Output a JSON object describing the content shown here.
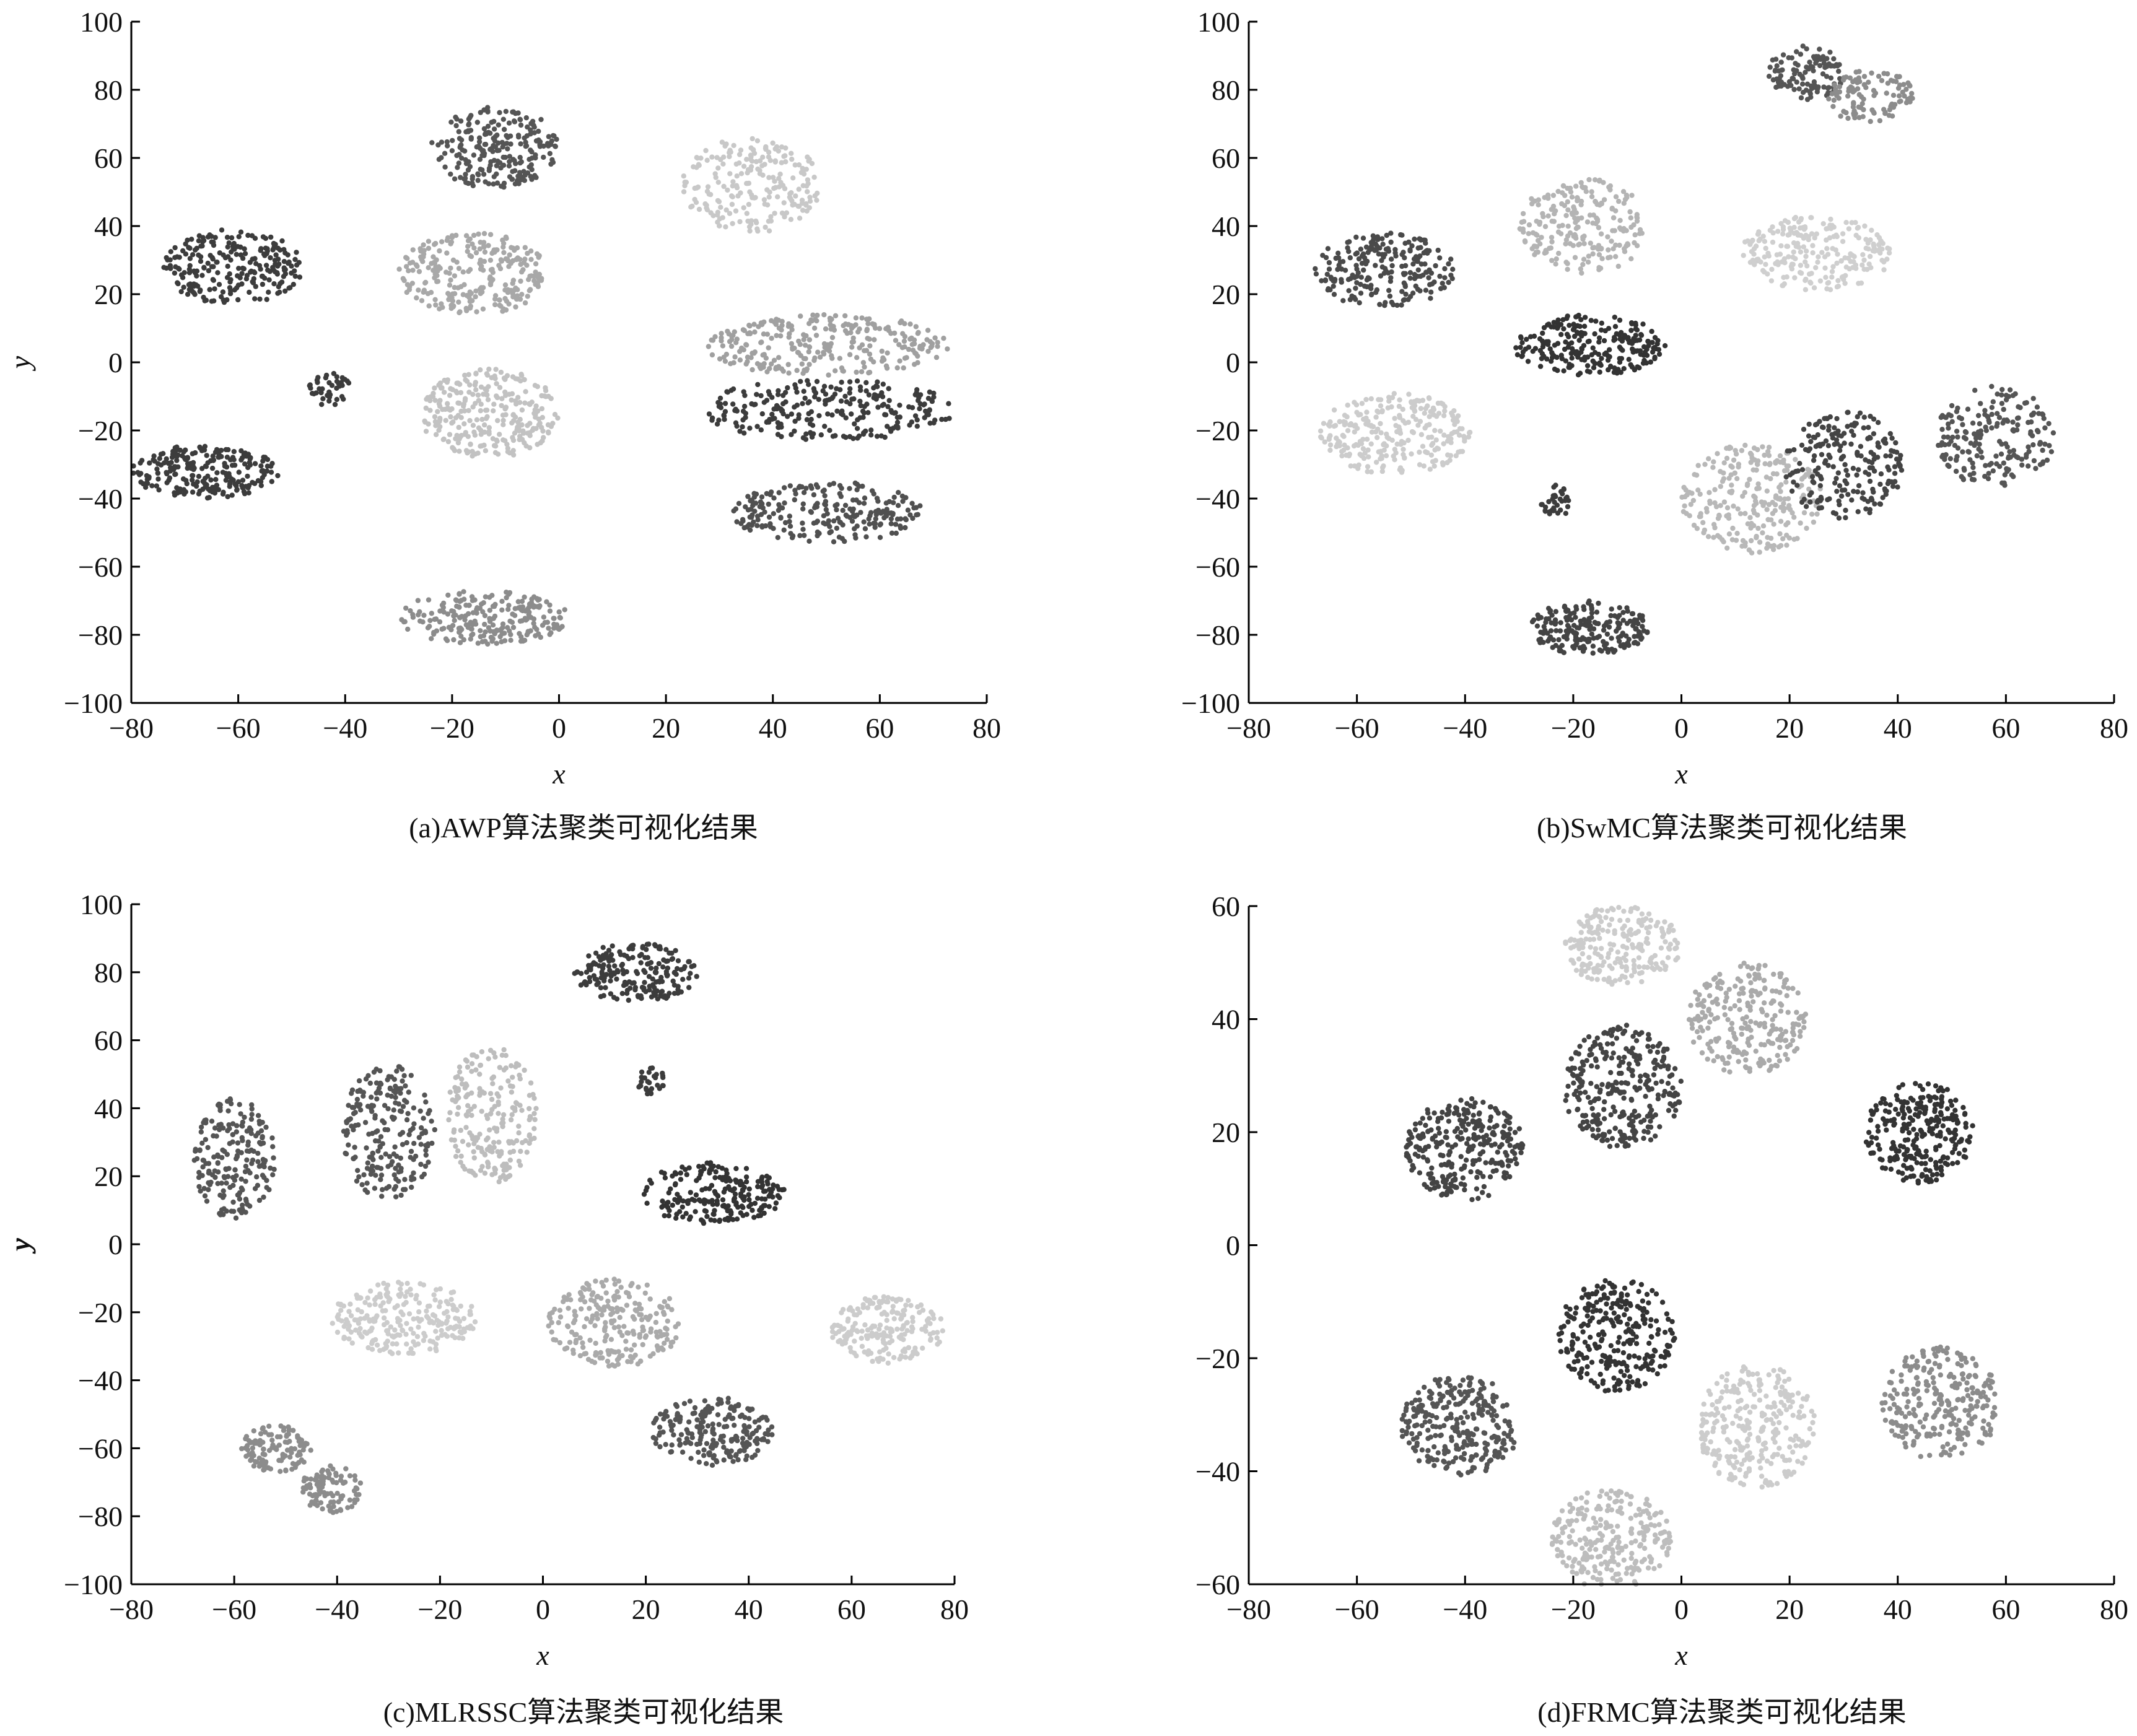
{
  "chart_data": [
    {
      "type": "scatter",
      "caption": "(a)AWP算法聚类可视化结果",
      "xlabel": "x",
      "ylabel": "y",
      "xlim": [
        -80,
        80
      ],
      "ylim": [
        -100,
        100
      ],
      "xticks": [
        "−80",
        "−60",
        "−40",
        "−20",
        "0",
        "20",
        "40",
        "60",
        "80"
      ],
      "yticks": [
        "100",
        "80",
        "60",
        "40",
        "20",
        "0",
        "−20",
        "−40",
        "−60",
        "−80",
        "−100"
      ],
      "grid": false,
      "clusters": [
        {
          "cx": -61,
          "cy": 28,
          "rx": 13,
          "ry": 11,
          "n": 240,
          "color": "#3c3c3c"
        },
        {
          "cx": -12,
          "cy": 63,
          "rx": 12,
          "ry": 12,
          "n": 230,
          "color": "#555555"
        },
        {
          "cx": 36,
          "cy": 52,
          "rx": 13,
          "ry": 14,
          "n": 220,
          "color": "#c8c8c8"
        },
        {
          "cx": -16,
          "cy": 26,
          "rx": 14,
          "ry": 12,
          "n": 260,
          "color": "#a8a8a8"
        },
        {
          "cx": -43,
          "cy": -8,
          "rx": 4,
          "ry": 5,
          "n": 40,
          "color": "#3c3c3c"
        },
        {
          "cx": -13,
          "cy": -15,
          "rx": 13,
          "ry": 13,
          "n": 280,
          "color": "#c2c2c2"
        },
        {
          "cx": -66,
          "cy": -32,
          "rx": 14,
          "ry": 8,
          "n": 230,
          "color": "#3c3c3c"
        },
        {
          "cx": 50,
          "cy": 5,
          "rx": 23,
          "ry": 9,
          "n": 280,
          "color": "#a0a0a0"
        },
        {
          "cx": 50,
          "cy": -14,
          "rx": 24,
          "ry": 9,
          "n": 260,
          "color": "#3c3c3c"
        },
        {
          "cx": 50,
          "cy": -44,
          "rx": 18,
          "ry": 9,
          "n": 230,
          "color": "#505050"
        },
        {
          "cx": -14,
          "cy": -75,
          "rx": 16,
          "ry": 8,
          "n": 230,
          "color": "#8c8c8c"
        }
      ]
    },
    {
      "type": "scatter",
      "caption": "(b)SwMC算法聚类可视化结果",
      "xlabel": "x",
      "ylabel": "y",
      "xlim": [
        -80,
        80
      ],
      "ylim": [
        -100,
        100
      ],
      "xticks": [
        "−80",
        "−60",
        "−40",
        "−20",
        "0",
        "20",
        "40",
        "60",
        "80"
      ],
      "yticks": [
        "100",
        "80",
        "60",
        "40",
        "20",
        "0",
        "−20",
        "−40",
        "−60",
        "−80",
        "−100"
      ],
      "grid": false,
      "clusters": [
        {
          "cx": 23,
          "cy": 85,
          "rx": 7,
          "ry": 8,
          "n": 110,
          "color": "#555555"
        },
        {
          "cx": 35,
          "cy": 78,
          "rx": 8,
          "ry": 8,
          "n": 110,
          "color": "#8c8c8c"
        },
        {
          "cx": -55,
          "cy": 27,
          "rx": 13,
          "ry": 11,
          "n": 220,
          "color": "#4a4a4a"
        },
        {
          "cx": -18,
          "cy": 40,
          "rx": 12,
          "ry": 14,
          "n": 220,
          "color": "#b4b4b4"
        },
        {
          "cx": 25,
          "cy": 32,
          "rx": 14,
          "ry": 11,
          "n": 230,
          "color": "#cfcfcf"
        },
        {
          "cx": -17,
          "cy": 5,
          "rx": 14,
          "ry": 9,
          "n": 240,
          "color": "#333333"
        },
        {
          "cx": -53,
          "cy": -21,
          "rx": 14,
          "ry": 12,
          "n": 260,
          "color": "#cccccc"
        },
        {
          "cx": -23,
          "cy": -41,
          "rx": 3,
          "ry": 5,
          "n": 35,
          "color": "#3c3c3c"
        },
        {
          "cx": 13,
          "cy": -40,
          "rx": 13,
          "ry": 16,
          "n": 250,
          "color": "#b8b8b8"
        },
        {
          "cx": 30,
          "cy": -30,
          "rx": 11,
          "ry": 16,
          "n": 220,
          "color": "#444444"
        },
        {
          "cx": 58,
          "cy": -22,
          "rx": 11,
          "ry": 15,
          "n": 200,
          "color": "#555555"
        },
        {
          "cx": -17,
          "cy": -78,
          "rx": 11,
          "ry": 8,
          "n": 210,
          "color": "#444444"
        }
      ]
    },
    {
      "type": "scatter",
      "caption": "(c)MLRSSC算法聚类可视化结果",
      "xlabel": "x",
      "ylabel": "y",
      "xlim": [
        -80,
        80
      ],
      "ylim": [
        -100,
        100
      ],
      "xticks": [
        "−80",
        "−60",
        "−40",
        "−20",
        "0",
        "20",
        "40",
        "60",
        "80"
      ],
      "yticks": [
        "100",
        "80",
        "60",
        "40",
        "20",
        "0",
        "−20",
        "−40",
        "−60",
        "−80",
        "−100"
      ],
      "grid": false,
      "clusters": [
        {
          "cx": 18,
          "cy": 80,
          "rx": 12,
          "ry": 9,
          "n": 200,
          "color": "#3c3c3c"
        },
        {
          "cx": 21,
          "cy": 48,
          "rx": 3,
          "ry": 4,
          "n": 30,
          "color": "#3c3c3c"
        },
        {
          "cx": -60,
          "cy": 25,
          "rx": 8,
          "ry": 18,
          "n": 200,
          "color": "#555555"
        },
        {
          "cx": -30,
          "cy": 33,
          "rx": 9,
          "ry": 20,
          "n": 220,
          "color": "#555555"
        },
        {
          "cx": -10,
          "cy": 38,
          "rx": 9,
          "ry": 20,
          "n": 220,
          "color": "#bdbdbd"
        },
        {
          "cx": 33,
          "cy": 15,
          "rx": 14,
          "ry": 9,
          "n": 220,
          "color": "#333333"
        },
        {
          "cx": -27,
          "cy": -22,
          "rx": 14,
          "ry": 11,
          "n": 240,
          "color": "#cccccc"
        },
        {
          "cx": 14,
          "cy": -23,
          "rx": 13,
          "ry": 13,
          "n": 240,
          "color": "#aaaaaa"
        },
        {
          "cx": 67,
          "cy": -25,
          "rx": 11,
          "ry": 10,
          "n": 200,
          "color": "#cccccc"
        },
        {
          "cx": 33,
          "cy": -55,
          "rx": 12,
          "ry": 10,
          "n": 210,
          "color": "#555555"
        },
        {
          "cx": -52,
          "cy": -60,
          "rx": 7,
          "ry": 7,
          "n": 110,
          "color": "#8c8c8c"
        },
        {
          "cx": -41,
          "cy": -72,
          "rx": 6,
          "ry": 7,
          "n": 100,
          "color": "#8c8c8c"
        }
      ]
    },
    {
      "type": "scatter",
      "caption": "(d)FRMC算法聚类可视化结果",
      "xlabel": "x",
      "ylabel": "y",
      "xlim": [
        -80,
        80
      ],
      "ylim": [
        -60,
        60
      ],
      "xticks": [
        "−80",
        "−60",
        "−40",
        "−20",
        "0",
        "20",
        "40",
        "60",
        "80"
      ],
      "yticks": [
        "60",
        "40",
        "20",
        "0",
        "−20",
        "−40",
        "−60"
      ],
      "grid": false,
      "clusters": [
        {
          "cx": -11,
          "cy": 53,
          "rx": 11,
          "ry": 7,
          "n": 220,
          "color": "#cccccc"
        },
        {
          "cx": 12,
          "cy": 40,
          "rx": 11,
          "ry": 10,
          "n": 250,
          "color": "#aaaaaa"
        },
        {
          "cx": -40,
          "cy": 17,
          "rx": 11,
          "ry": 9,
          "n": 290,
          "color": "#444444"
        },
        {
          "cx": -11,
          "cy": 28,
          "rx": 11,
          "ry": 11,
          "n": 300,
          "color": "#444444"
        },
        {
          "cx": 44,
          "cy": 20,
          "rx": 10,
          "ry": 9,
          "n": 270,
          "color": "#333333"
        },
        {
          "cx": -12,
          "cy": -16,
          "rx": 11,
          "ry": 10,
          "n": 270,
          "color": "#333333"
        },
        {
          "cx": -41,
          "cy": -32,
          "rx": 11,
          "ry": 9,
          "n": 280,
          "color": "#555555"
        },
        {
          "cx": 14,
          "cy": -32,
          "rx": 11,
          "ry": 11,
          "n": 280,
          "color": "#cccccc"
        },
        {
          "cx": 48,
          "cy": -28,
          "rx": 11,
          "ry": 10,
          "n": 270,
          "color": "#8c8c8c"
        },
        {
          "cx": -13,
          "cy": -52,
          "rx": 11,
          "ry": 9,
          "n": 250,
          "color": "#bdbdbd"
        }
      ]
    }
  ]
}
